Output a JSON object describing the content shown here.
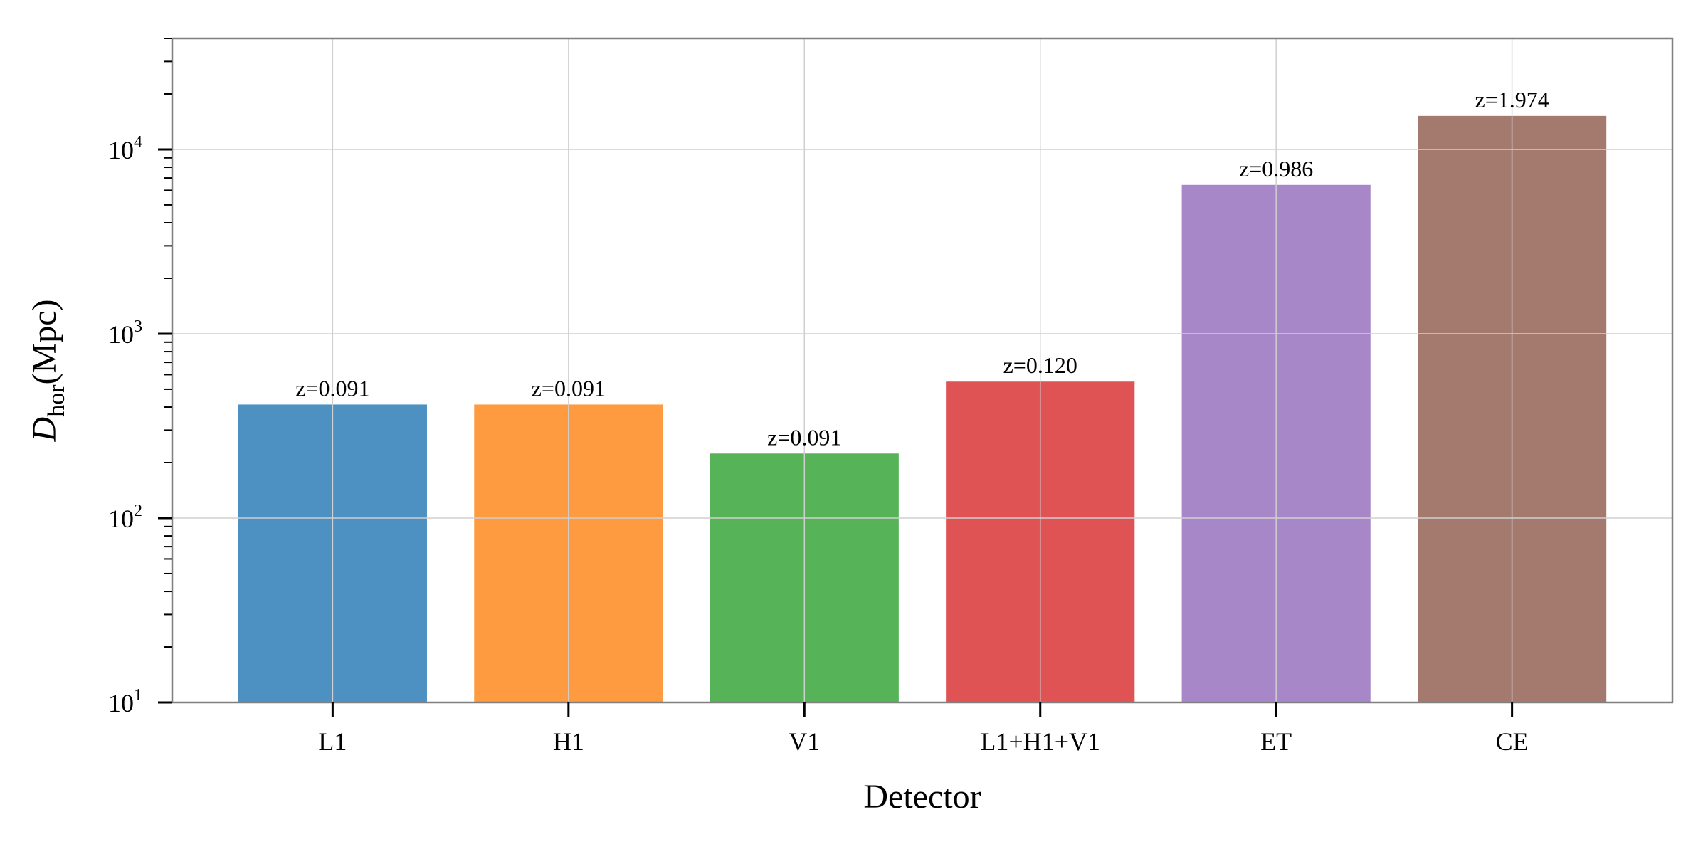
{
  "chart_data": {
    "type": "bar",
    "title": "",
    "xlabel": "Detector",
    "ylabel": "D",
    "ylabel_subscript": "hor",
    "ylabel_unit": "(Mpc)",
    "yscale": "log",
    "ylim": [
      10,
      40000
    ],
    "grid": true,
    "categories": [
      "L1",
      "H1",
      "V1",
      "L1+H1+V1",
      "ET",
      "CE"
    ],
    "values": [
      413,
      413,
      224,
      550,
      6420,
      15200
    ],
    "annotations": [
      "z=0.091",
      "z=0.091",
      "z=0.091",
      "z=0.120",
      "z=0.986",
      "z=1.974"
    ],
    "colors": [
      "#4c91c2",
      "#fe9a3f",
      "#57b357",
      "#df5355",
      "#a887c8",
      "#a47a6f"
    ],
    "yticks": [
      {
        "value": 10,
        "base": "10",
        "exp": "1"
      },
      {
        "value": 100,
        "base": "10",
        "exp": "2"
      },
      {
        "value": 1000,
        "base": "10",
        "exp": "3"
      },
      {
        "value": 10000,
        "base": "10",
        "exp": "4"
      }
    ]
  }
}
